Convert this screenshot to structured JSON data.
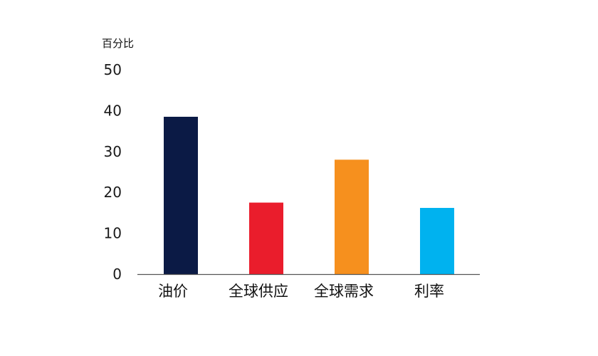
{
  "chart_data": {
    "type": "bar",
    "unit_label": "百分比",
    "categories": [
      "油价",
      "全球供应",
      "全球需求",
      "利率"
    ],
    "values": [
      38.5,
      17.5,
      28,
      16.2
    ],
    "colors": [
      "#0b1a45",
      "#ea1d2c",
      "#f6901e",
      "#00b2ef"
    ],
    "ylim": [
      0,
      50
    ],
    "yticks": [
      0,
      10,
      20,
      30,
      40,
      50
    ],
    "grid": false,
    "legend": "none"
  }
}
